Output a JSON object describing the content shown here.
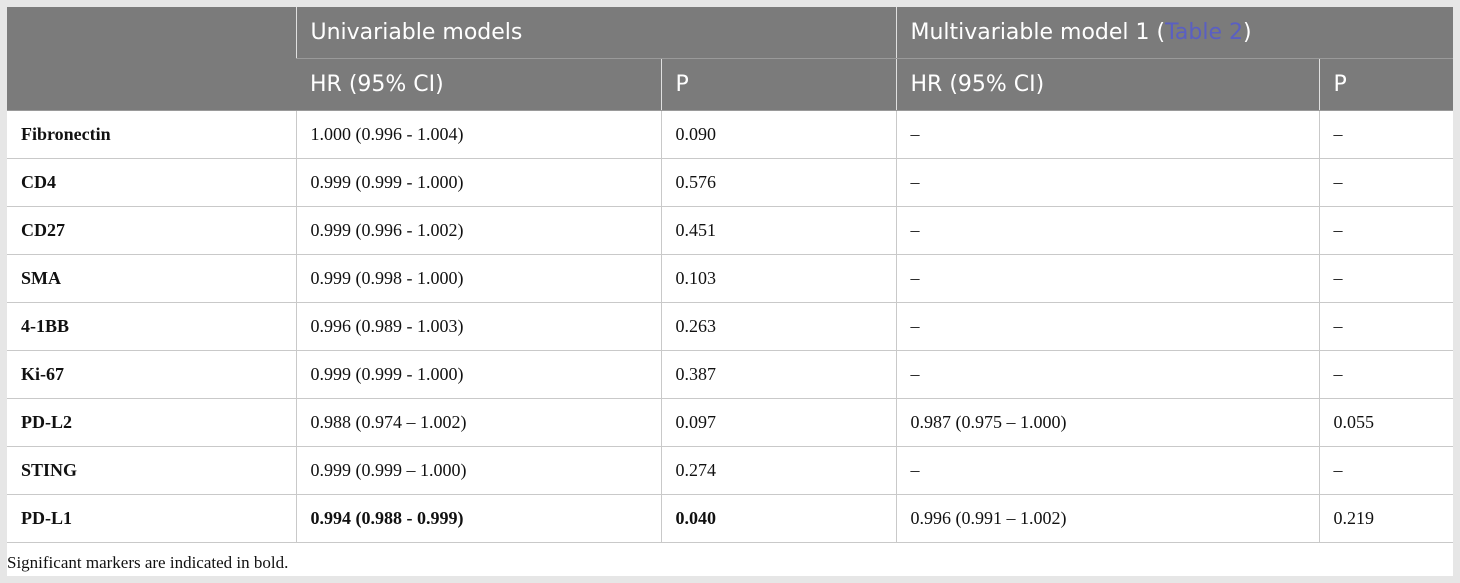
{
  "header": {
    "univariable_title": "Univariable models",
    "multivariable_title": "Multivariable model 1 (",
    "multivariable_link": "Table 2",
    "multivariable_close": ")",
    "hr_label": "HR (95% CI)",
    "p_label": "P"
  },
  "rows": [
    {
      "marker": "Fibronectin",
      "uni_hr": "1.000 (0.996 - 1.004)",
      "uni_p": "0.090",
      "multi_hr": "–",
      "multi_p": "–"
    },
    {
      "marker": "CD4",
      "uni_hr": "0.999 (0.999 - 1.000)",
      "uni_p": "0.576",
      "multi_hr": "–",
      "multi_p": "–"
    },
    {
      "marker": "CD27",
      "uni_hr": "0.999 (0.996 - 1.002)",
      "uni_p": "0.451",
      "multi_hr": "–",
      "multi_p": "–"
    },
    {
      "marker": "SMA",
      "uni_hr": "0.999 (0.998 - 1.000)",
      "uni_p": "0.103",
      "multi_hr": "–",
      "multi_p": "–"
    },
    {
      "marker": "4-1BB",
      "uni_hr": "0.996 (0.989 - 1.003)",
      "uni_p": "0.263",
      "multi_hr": "–",
      "multi_p": "–"
    },
    {
      "marker": "Ki-67",
      "uni_hr": "0.999 (0.999 - 1.000)",
      "uni_p": "0.387",
      "multi_hr": "–",
      "multi_p": "–"
    },
    {
      "marker": "PD-L2",
      "uni_hr": "0.988 (0.974 – 1.002)",
      "uni_p": "0.097",
      "multi_hr": "0.987 (0.975 – 1.000)",
      "multi_p": "0.055"
    },
    {
      "marker": "STING",
      "uni_hr": "0.999 (0.999 – 1.000)",
      "uni_p": "0.274",
      "multi_hr": "–",
      "multi_p": "–"
    },
    {
      "marker": "PD-L1",
      "uni_hr": "0.994 (0.988 - 0.999)",
      "uni_p": "0.040",
      "multi_hr": "0.996 (0.991 – 1.002)",
      "multi_p": "0.219"
    }
  ],
  "footnote": "Significant markers are indicated in bold."
}
